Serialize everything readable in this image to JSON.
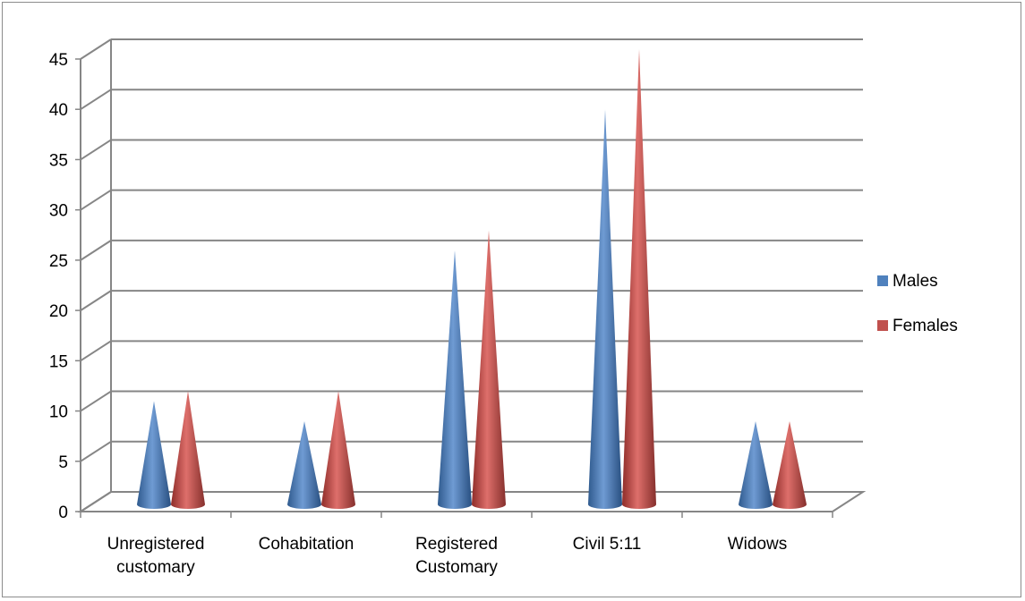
{
  "chart_data": {
    "type": "bar",
    "style": "3d-cone",
    "categories": [
      [
        "Unregistered",
        "customary"
      ],
      [
        "Cohabitation"
      ],
      [
        "Registered",
        "Customary"
      ],
      [
        "Civil 5:11"
      ],
      [
        "Widows"
      ]
    ],
    "series": [
      {
        "name": "Males",
        "color": "#4f81bd",
        "values": [
          10,
          8,
          25,
          39,
          8
        ]
      },
      {
        "name": "Females",
        "color": "#c0504d",
        "values": [
          11,
          11,
          27,
          45,
          8
        ]
      }
    ],
    "ylim": [
      0,
      45
    ],
    "yticks": [
      "0",
      "5",
      "10",
      "15",
      "20",
      "25",
      "30",
      "35",
      "40",
      "45"
    ],
    "grid": true,
    "legend": "right"
  }
}
